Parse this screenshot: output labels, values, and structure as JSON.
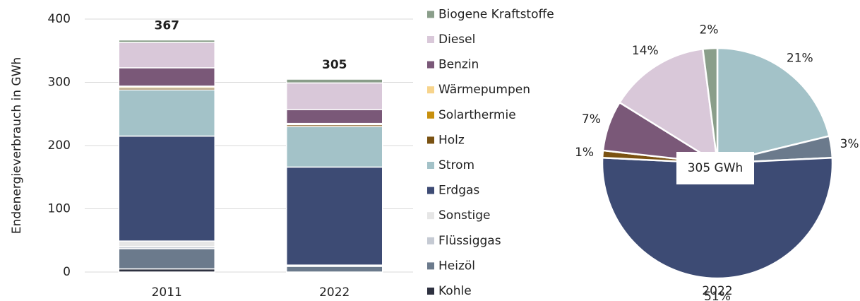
{
  "chart_data": [
    {
      "type": "stacked_bar",
      "y_label": "Endenergieverbrauch in GWh",
      "categories": [
        "2011",
        "2022"
      ],
      "totals": [
        367,
        305
      ],
      "ylim": [
        0,
        400
      ],
      "yticks": [
        0,
        100,
        200,
        300,
        400
      ],
      "grid": true,
      "series": [
        {
          "name": "Kohle",
          "color": "#2e3140",
          "values": [
            5,
            0
          ]
        },
        {
          "name": "Heizöl",
          "color": "#6b7a8c",
          "values": [
            32,
            9
          ]
        },
        {
          "name": "Flüssiggas",
          "color": "#c5cad3",
          "values": [
            3,
            1
          ]
        },
        {
          "name": "Sonstige",
          "color": "#e6e6e6",
          "values": [
            9,
            1
          ]
        },
        {
          "name": "Erdgas",
          "color": "#3d4b74",
          "values": [
            166,
            155
          ]
        },
        {
          "name": "Strom",
          "color": "#a3c2c8",
          "values": [
            73,
            64
          ]
        },
        {
          "name": "Holz",
          "color": "#7a5212",
          "values": [
            3,
            3
          ]
        },
        {
          "name": "Solarthermie",
          "color": "#c8900e",
          "values": [
            2,
            1
          ]
        },
        {
          "name": "Wärmepumpen",
          "color": "#f7d48c",
          "values": [
            1,
            1
          ]
        },
        {
          "name": "Benzin",
          "color": "#7a5878",
          "values": [
            29,
            22
          ]
        },
        {
          "name": "Diesel",
          "color": "#d9c8d9",
          "values": [
            40,
            42
          ]
        },
        {
          "name": "Biogene Kraftstoffe",
          "color": "#8a9e8a",
          "values": [
            4,
            6
          ]
        }
      ]
    },
    {
      "type": "pie",
      "label": "2022",
      "center_label": "305 GWh",
      "values": [
        21,
        3,
        51,
        1,
        7,
        14,
        2
      ],
      "value_labels": [
        "21%",
        "3%",
        "51%",
        "1%",
        "7%",
        "14%",
        "2%"
      ],
      "colors": [
        "#a3c2c8",
        "#6b7a8c",
        "#3d4b74",
        "#7a5212",
        "#7a5878",
        "#d9c8d9",
        "#8a9e8a"
      ]
    }
  ]
}
